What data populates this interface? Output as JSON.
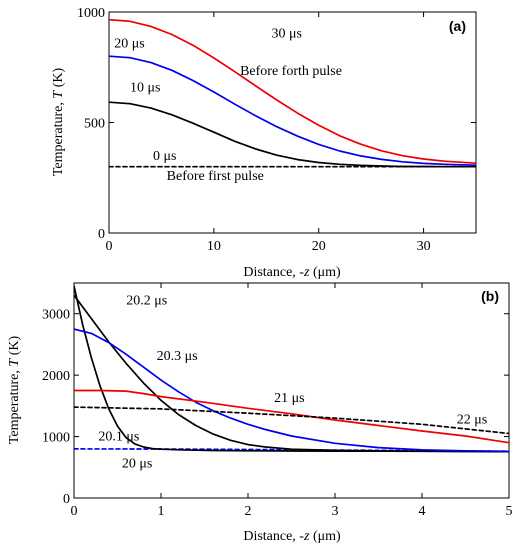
{
  "chart_data": [
    {
      "panel": "(a)",
      "type": "line",
      "xlabel_main": "Distance, -",
      "xlabel_var": "z",
      "xlabel_unit": " (μm)",
      "ylabel_main": "Temperature, ",
      "ylabel_var": "T",
      "ylabel_unit": " (K)",
      "xlim": [
        0,
        35
      ],
      "ylim": [
        0,
        1000
      ],
      "xticks": [
        0,
        10,
        20,
        30
      ],
      "yticks": [
        0,
        500,
        1000
      ],
      "grid": false,
      "series": [
        {
          "name": "0 μs",
          "color": "#000000",
          "dash": true,
          "x": [
            0,
            35
          ],
          "y": [
            300,
            300
          ]
        },
        {
          "name": "10 μs",
          "color": "#000000",
          "dash": false,
          "x": [
            0,
            2,
            4,
            6,
            8,
            10,
            12,
            14,
            16,
            18,
            20,
            22,
            24,
            26,
            28,
            30,
            32,
            35
          ],
          "y": [
            592,
            585,
            565,
            535,
            497,
            456,
            415,
            380,
            352,
            332,
            319,
            311,
            306,
            303,
            301,
            301,
            300,
            300
          ]
        },
        {
          "name": "20 μs",
          "color": "#0000ee",
          "dash": false,
          "x": [
            0,
            2,
            4,
            6,
            8,
            10,
            12,
            14,
            16,
            18,
            20,
            22,
            24,
            26,
            28,
            30,
            32,
            35
          ],
          "y": [
            800,
            793,
            771,
            736,
            690,
            638,
            583,
            530,
            481,
            438,
            401,
            371,
            349,
            333,
            322,
            315,
            311,
            307
          ]
        },
        {
          "name": "30 μs",
          "color": "#ee0000",
          "dash": false,
          "x": [
            0,
            2,
            4,
            6,
            8,
            10,
            12,
            14,
            16,
            18,
            20,
            22,
            24,
            26,
            28,
            30,
            32,
            35
          ],
          "y": [
            965,
            958,
            935,
            898,
            850,
            792,
            730,
            665,
            602,
            542,
            488,
            440,
            402,
            372,
            350,
            335,
            325,
            316
          ]
        }
      ],
      "annotations": [
        {
          "text": "30 μs",
          "x": 15.5,
          "y": 885
        },
        {
          "text": "20 μs",
          "x": 0.5,
          "y": 840
        },
        {
          "text": "Before forth pulse",
          "x": 12.5,
          "y": 715
        },
        {
          "text": "10 μs",
          "x": 2.0,
          "y": 640
        },
        {
          "text": "0 μs",
          "x": 4.2,
          "y": 330
        },
        {
          "text": "Before first pulse",
          "x": 5.5,
          "y": 240
        }
      ]
    },
    {
      "panel": "(b)",
      "type": "line",
      "xlabel_main": "Distance, -",
      "xlabel_var": "z",
      "xlabel_unit": " (μm)",
      "ylabel_main": "Temperature, ",
      "ylabel_var": "T",
      "ylabel_unit": " (K)",
      "xlim": [
        0,
        5
      ],
      "ylim": [
        0,
        3500
      ],
      "xticks": [
        0,
        1,
        2,
        3,
        4,
        5
      ],
      "yticks": [
        0,
        1000,
        2000,
        3000
      ],
      "grid": false,
      "series": [
        {
          "name": "20 μs",
          "color": "#0000ee",
          "dash": true,
          "x": [
            0,
            1,
            2,
            3,
            4,
            5
          ],
          "y": [
            800,
            798,
            790,
            780,
            772,
            760
          ]
        },
        {
          "name": "20.1 μs",
          "color": "#000000",
          "dash": false,
          "x": [
            0,
            0.1,
            0.2,
            0.3,
            0.4,
            0.5,
            0.6,
            0.7,
            0.8,
            0.9,
            1.0,
            1.2,
            1.4,
            1.6,
            1.8,
            2.0,
            2.5,
            3.0,
            4.0,
            5.0
          ],
          "y": [
            3450,
            2820,
            2280,
            1820,
            1450,
            1170,
            980,
            880,
            830,
            805,
            795,
            785,
            778,
            773,
            770,
            768,
            765,
            763,
            760,
            755
          ]
        },
        {
          "name": "20.2 μs",
          "color": "#000000",
          "dash": false,
          "x": [
            0,
            0.2,
            0.4,
            0.6,
            0.8,
            1.0,
            1.2,
            1.4,
            1.6,
            1.8,
            2.0,
            2.2,
            2.5,
            3.0,
            3.5,
            4.0,
            5.0
          ],
          "y": [
            3300,
            2920,
            2540,
            2190,
            1870,
            1590,
            1360,
            1180,
            1040,
            940,
            870,
            830,
            795,
            775,
            765,
            762,
            755
          ]
        },
        {
          "name": "20.3 μs",
          "color": "#0000ee",
          "dash": false,
          "x": [
            0,
            0.2,
            0.4,
            0.6,
            0.8,
            1.0,
            1.2,
            1.4,
            1.6,
            1.8,
            2.0,
            2.2,
            2.5,
            3.0,
            3.5,
            4.0,
            4.5,
            5.0
          ],
          "y": [
            2750,
            2680,
            2530,
            2340,
            2130,
            1920,
            1730,
            1560,
            1420,
            1300,
            1200,
            1115,
            1010,
            890,
            820,
            785,
            768,
            760
          ]
        },
        {
          "name": "21 μs",
          "color": "#ee0000",
          "dash": false,
          "x": [
            0,
            0.3,
            0.6,
            0.8,
            1.0,
            1.5,
            2.0,
            2.5,
            3.0,
            3.5,
            4.0,
            4.5,
            5.0
          ],
          "y": [
            1750,
            1750,
            1740,
            1700,
            1650,
            1560,
            1460,
            1370,
            1270,
            1180,
            1090,
            1010,
            900
          ]
        },
        {
          "name": "22 μs",
          "color": "#000000",
          "dash": true,
          "x": [
            0,
            1,
            2,
            3,
            4,
            5
          ],
          "y": [
            1480,
            1450,
            1380,
            1300,
            1200,
            1050
          ]
        }
      ],
      "annotations": [
        {
          "text": "20.2 μs",
          "x": 0.6,
          "y": 3150
        },
        {
          "text": "20.3 μs",
          "x": 0.95,
          "y": 2250
        },
        {
          "text": "21 μs",
          "x": 2.3,
          "y": 1560
        },
        {
          "text": "22 μs",
          "x": 4.4,
          "y": 1210
        },
        {
          "text": "20.1 μs",
          "x": 0.28,
          "y": 940
        },
        {
          "text": "20 μs",
          "x": 0.55,
          "y": 500
        }
      ]
    }
  ]
}
